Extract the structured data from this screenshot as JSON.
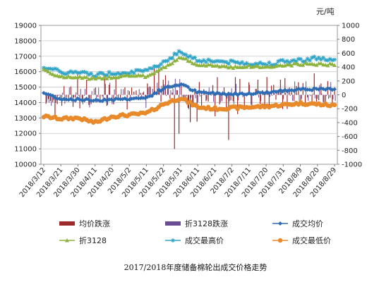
{
  "chart_data": {
    "type": "line",
    "title": "2017/2018年度储备棉轮出成交价格走势",
    "right_unit": "元/吨",
    "left_axis": {
      "min": 10000,
      "max": 19000,
      "step": 1000,
      "ticks": [
        "10000",
        "11000",
        "12000",
        "13000",
        "14000",
        "15000",
        "16000",
        "17000",
        "18000",
        "19000"
      ]
    },
    "right_axis": {
      "min": -1000,
      "max": 1000,
      "step": 200,
      "ticks": [
        "-1000",
        "-800",
        "-600",
        "-400",
        "-200",
        "0",
        "200",
        "400",
        "600",
        "800",
        "1000"
      ]
    },
    "x_labels": [
      "2018/3/12",
      "2018/3/21",
      "2018/3/30",
      "2018/4/11",
      "2018/4/20",
      "2018/5/2",
      "2018/5/11",
      "2018/5/22",
      "2018/5/31",
      "2018/6/11",
      "2018/6/21",
      "2018/7/2",
      "2018/7/11",
      "2018/7/20",
      "2018/7/31",
      "2018/8/9",
      "2018/8/20",
      "2018/8/29"
    ],
    "legend": [
      {
        "key": "avg_change",
        "label": "均价跌涨",
        "kind": "bar",
        "color": "#9e2a2b"
      },
      {
        "key": "z3128_change",
        "label": "折3128跌涨",
        "kind": "bar",
        "color": "#6a4c93"
      },
      {
        "key": "avg_price",
        "label": "成交均价",
        "kind": "line-diamond",
        "color": "#2e6db4"
      },
      {
        "key": "z3128",
        "label": "折3128",
        "kind": "line-triangle",
        "color": "#8db33e"
      },
      {
        "key": "max_price",
        "label": "成交最高价",
        "kind": "line-star",
        "color": "#2fa3c8"
      },
      {
        "key": "min_price",
        "label": "成交最低价",
        "kind": "line-circle",
        "color": "#e8892a"
      }
    ],
    "segments": [
      {
        "label_index": 0,
        "avg": 14620,
        "z3128": 16150,
        "max": 16350,
        "min": 13100
      },
      {
        "label_index": 1,
        "avg": 14230,
        "z3128": 15650,
        "max": 15950,
        "min": 12950
      },
      {
        "label_index": 2,
        "avg": 14200,
        "z3128": 15650,
        "max": 15950,
        "min": 13000
      },
      {
        "label_index": 3,
        "avg": 14150,
        "z3128": 15550,
        "max": 15800,
        "min": 12700
      },
      {
        "label_index": 4,
        "avg": 14200,
        "z3128": 15650,
        "max": 15900,
        "min": 13100
      },
      {
        "label_index": 5,
        "avg": 14250,
        "z3128": 15750,
        "max": 16000,
        "min": 13200
      },
      {
        "label_index": 6,
        "avg": 14300,
        "z3128": 15700,
        "max": 16000,
        "min": 13300
      },
      {
        "label_index": 7,
        "avg": 14900,
        "z3128": 16250,
        "max": 16650,
        "min": 13900
      },
      {
        "label_index": 8,
        "avg": 15200,
        "z3128": 16950,
        "max": 17300,
        "min": 14300
      },
      {
        "label_index": 9,
        "avg": 14650,
        "z3128": 16400,
        "max": 16750,
        "min": 13700
      },
      {
        "label_index": 10,
        "avg": 14600,
        "z3128": 16400,
        "max": 16700,
        "min": 13600
      },
      {
        "label_index": 11,
        "avg": 14550,
        "z3128": 16300,
        "max": 16600,
        "min": 13650
      },
      {
        "label_index": 12,
        "avg": 14600,
        "z3128": 16350,
        "max": 16550,
        "min": 13700
      },
      {
        "label_index": 13,
        "avg": 14650,
        "z3128": 16300,
        "max": 16500,
        "min": 13750
      },
      {
        "label_index": 14,
        "avg": 14750,
        "z3128": 16400,
        "max": 16650,
        "min": 13850
      },
      {
        "label_index": 15,
        "avg": 14900,
        "z3128": 16500,
        "max": 16750,
        "min": 13950
      },
      {
        "label_index": 16,
        "avg": 14850,
        "z3128": 16500,
        "max": 16900,
        "min": 13900
      },
      {
        "label_index": 17,
        "avg": 14850,
        "z3128": 16450,
        "max": 16700,
        "min": 13800
      }
    ]
  }
}
